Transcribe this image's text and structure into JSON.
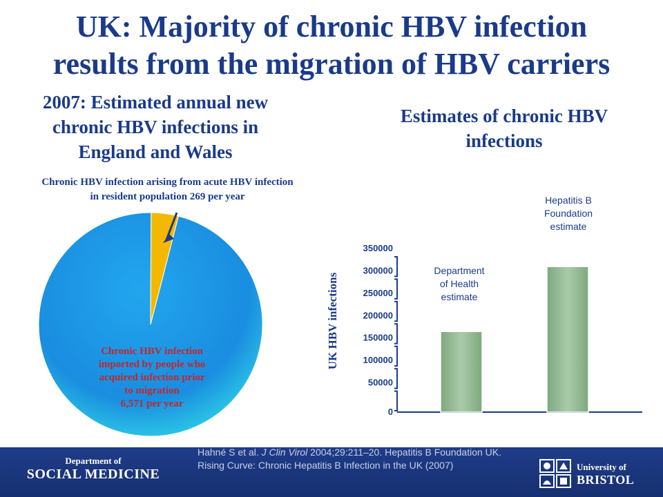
{
  "slide": {
    "title_line1": "UK: Majority of chronic HBV infection",
    "title_line2": "results from the migration of HBV carriers"
  },
  "colors": {
    "title": "#1a3a8a",
    "pie_main": "#1e8fe0",
    "pie_small": "#f5b800",
    "bars": "#9cbf9c",
    "footer": "#1f3c8a",
    "annotation_red": "#c1272d"
  },
  "chart_data": [
    {
      "type": "pie",
      "title_line1": "2007: Estimated annual new",
      "title_line2": "chronic HBV infections in",
      "title_line3": "England and Wales",
      "slices": [
        {
          "label_line1": "Chronic HBV infection arising from acute HBV infection",
          "label_line2": "in resident population 269 per year",
          "value": 269
        },
        {
          "label_line1": "Chronic HBV infection",
          "label_line2": "imported by people who",
          "label_line3": "acquired infection prior",
          "label_line4": "to migration",
          "label_line5": "6,571 per year",
          "value": 6571
        }
      ]
    },
    {
      "type": "bar",
      "title_line1": "Estimates of chronic HBV",
      "title_line2": "infections",
      "ylabel": "UK HBV infections",
      "ylim": [
        0,
        350000
      ],
      "yticks": [
        "0",
        "50000",
        "100000",
        "150000",
        "200000",
        "250000",
        "300000",
        "350000"
      ],
      "bars": [
        {
          "label_line1": "Department",
          "label_line2": "of Health",
          "label_line3": "estimate",
          "value": 180000
        },
        {
          "label_line1": "Hepatitis B",
          "label_line2": "Foundation",
          "label_line3": "estimate",
          "value": 325000
        }
      ]
    }
  ],
  "footer": {
    "dept_small": "Department  of",
    "dept_big": "SOCIAL MEDICINE",
    "citation_plain1": "Hahné S et al. ",
    "citation_italic": "J Clin Virol",
    "citation_plain2": " 2004;29:211–20.  Hepatitis B Foundation UK. Rising Curve: Chronic Hepatitis B Infection in the UK (2007)",
    "uni_small": "University of",
    "uni_big": "BRISTOL"
  }
}
